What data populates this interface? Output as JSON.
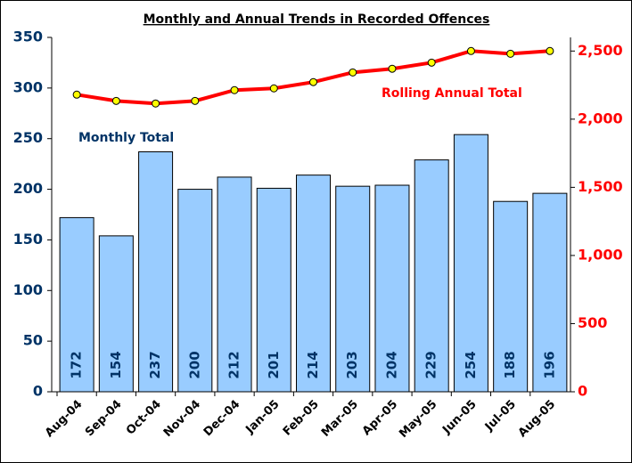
{
  "chart_data": {
    "type": "bar",
    "title": "Monthly and Annual Trends in Recorded Offences",
    "categories": [
      "Aug-04",
      "Sep-04",
      "Oct-04",
      "Nov-04",
      "Dec-04",
      "Jan-05",
      "Feb-05",
      "Mar-05",
      "Apr-05",
      "May-05",
      "Jun-05",
      "Jul-05",
      "Aug-05"
    ],
    "series": [
      {
        "name": "Monthly Total",
        "type": "bar",
        "color": "#99ccff",
        "values": [
          172,
          154,
          237,
          200,
          212,
          201,
          214,
          203,
          204,
          229,
          254,
          188,
          196
        ]
      },
      {
        "name": "Rolling Annual Total",
        "type": "line",
        "axis": "y2",
        "color": "#ff0000",
        "marker_color": "#ffff00",
        "values": [
          2180,
          2134,
          2115,
          2134,
          2213,
          2226,
          2272,
          2343,
          2370,
          2415,
          2500,
          2480,
          2500
        ]
      }
    ],
    "ylim": [
      0,
      350
    ],
    "yticks": [
      0,
      50,
      100,
      150,
      200,
      250,
      300,
      350
    ],
    "y2lim": [
      0,
      2600
    ],
    "y2ticks": [
      0,
      500,
      {
        "value": 1000,
        "label": "1,000"
      },
      {
        "value": 1500,
        "label": "1,500"
      },
      {
        "value": 2000,
        "label": "2,000"
      },
      {
        "value": 2500,
        "label": "2,500"
      }
    ],
    "y_color": "#003366",
    "y2_color": "#ff0000",
    "grid": false
  }
}
